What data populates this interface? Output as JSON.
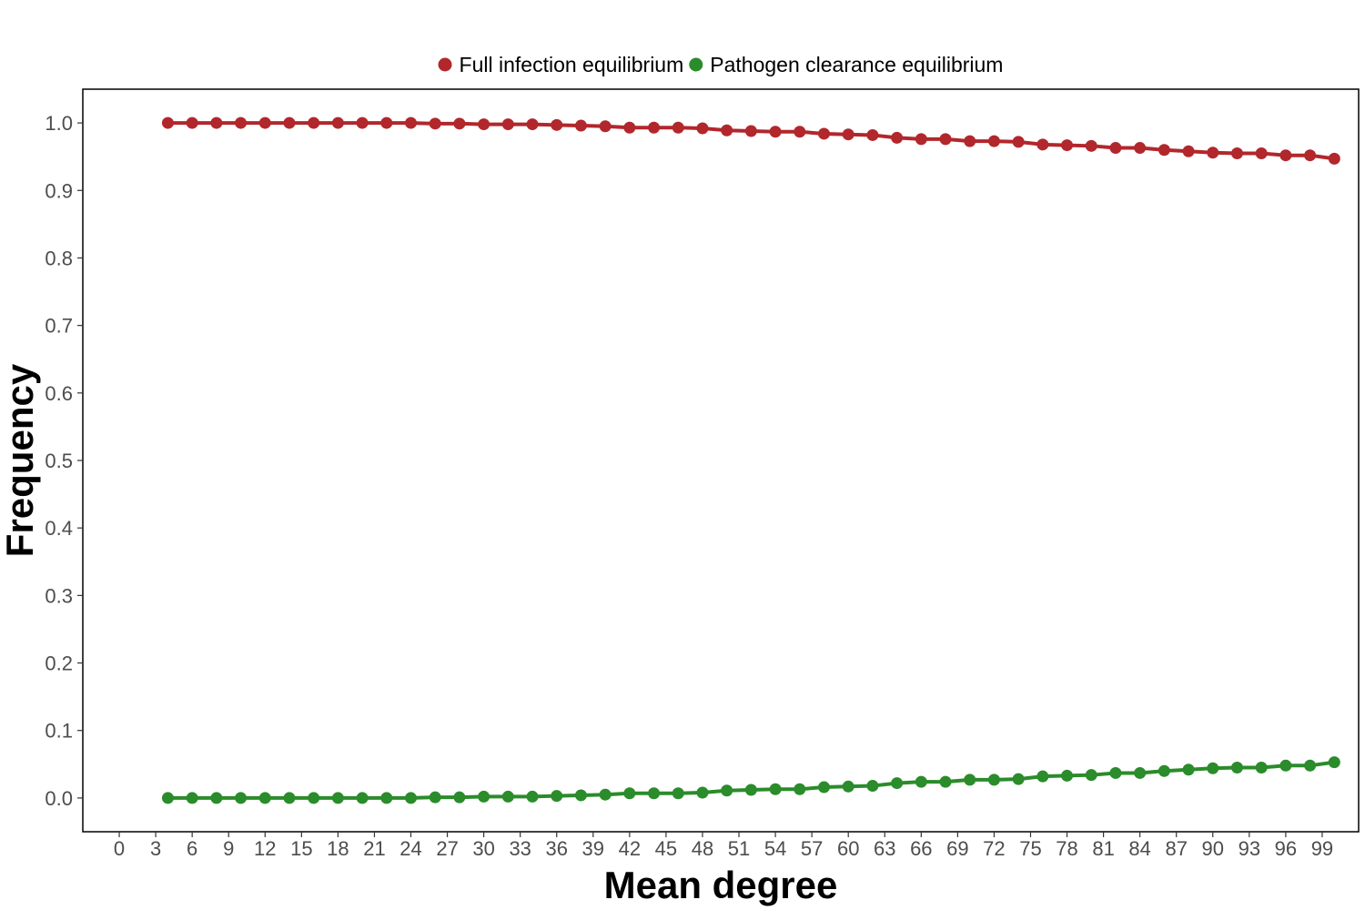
{
  "chart_data": {
    "type": "line",
    "title": "",
    "xlabel": "Mean degree",
    "ylabel": "Frequency",
    "xlim": [
      -3,
      102
    ],
    "ylim": [
      -0.05,
      1.05
    ],
    "x_ticks": [
      "0",
      "3",
      "6",
      "9",
      "12",
      "15",
      "18",
      "21",
      "24",
      "27",
      "30",
      "33",
      "36",
      "39",
      "42",
      "45",
      "48",
      "51",
      "54",
      "57",
      "60",
      "63",
      "66",
      "69",
      "72",
      "75",
      "78",
      "81",
      "84",
      "87",
      "90",
      "93",
      "96",
      "99"
    ],
    "y_ticks": [
      "0.0",
      "0.1",
      "0.2",
      "0.3",
      "0.4",
      "0.5",
      "0.6",
      "0.7",
      "0.8",
      "0.9",
      "1.0"
    ],
    "grid": false,
    "legend_position": "top",
    "x": [
      4,
      6,
      8,
      10,
      12,
      14,
      16,
      18,
      20,
      22,
      24,
      26,
      28,
      30,
      32,
      34,
      36,
      38,
      40,
      42,
      44,
      46,
      48,
      50,
      52,
      54,
      56,
      58,
      60,
      62,
      64,
      66,
      68,
      70,
      72,
      74,
      76,
      78,
      80,
      82,
      84,
      86,
      88,
      90,
      92,
      94,
      96,
      98,
      100
    ],
    "series": [
      {
        "name": "Full infection equilibrium",
        "color": "#b2272c",
        "values": [
          1.0,
          1.0,
          1.0,
          1.0,
          1.0,
          1.0,
          1.0,
          1.0,
          1.0,
          1.0,
          1.0,
          0.999,
          0.999,
          0.998,
          0.998,
          0.998,
          0.997,
          0.996,
          0.995,
          0.993,
          0.993,
          0.993,
          0.992,
          0.989,
          0.988,
          0.987,
          0.987,
          0.984,
          0.983,
          0.982,
          0.978,
          0.976,
          0.976,
          0.973,
          0.973,
          0.972,
          0.968,
          0.967,
          0.966,
          0.963,
          0.963,
          0.96,
          0.958,
          0.956,
          0.955,
          0.955,
          0.952,
          0.952,
          0.947
        ]
      },
      {
        "name": "Pathogen clearance equilibrium",
        "color": "#2a8c2a",
        "values": [
          0.0,
          0.0,
          0.0,
          0.0,
          0.0,
          0.0,
          0.0,
          0.0,
          0.0,
          0.0,
          0.0,
          0.001,
          0.001,
          0.002,
          0.002,
          0.002,
          0.003,
          0.004,
          0.005,
          0.007,
          0.007,
          0.007,
          0.008,
          0.011,
          0.012,
          0.013,
          0.013,
          0.016,
          0.017,
          0.018,
          0.022,
          0.024,
          0.024,
          0.027,
          0.027,
          0.028,
          0.032,
          0.033,
          0.034,
          0.037,
          0.037,
          0.04,
          0.042,
          0.044,
          0.045,
          0.045,
          0.048,
          0.048,
          0.053
        ]
      }
    ]
  }
}
